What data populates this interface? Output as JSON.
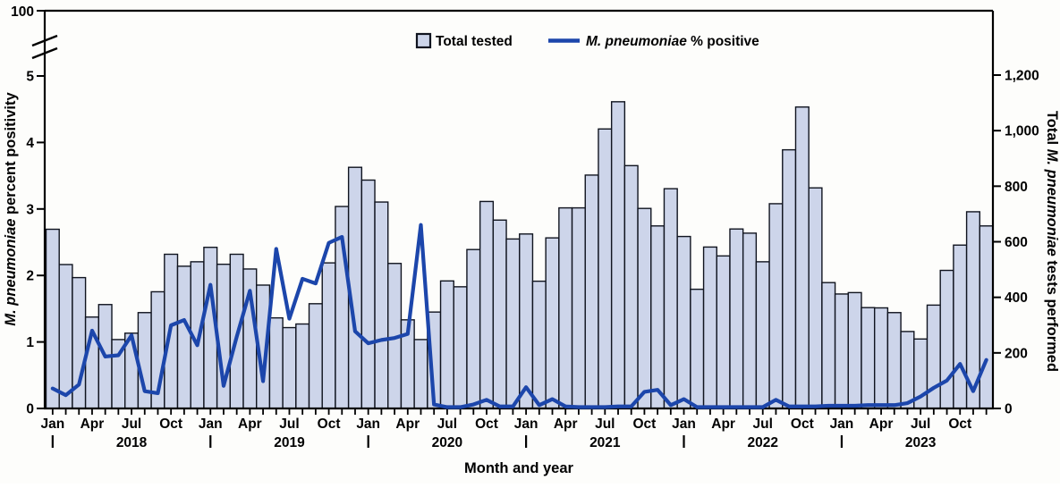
{
  "figure": {
    "legend": {
      "bar_label": "Total tested",
      "line_label_italic": "M. pneumoniae",
      "line_label_rest": " % positive"
    },
    "axes": {
      "left": {
        "title_italic": "M. pneumoniae",
        "title_rest": " percent positivity",
        "ticks": [
          "0",
          "1",
          "2",
          "3",
          "4",
          "5"
        ],
        "top_tick": "100"
      },
      "right": {
        "title_part1": "Total ",
        "title_italic": "M. pneumoniae",
        "title_part2": " tests performed",
        "ticks": [
          "0",
          "200",
          "400",
          "600",
          "800",
          "1,000",
          "1,200"
        ]
      },
      "x": {
        "title": "Month and year",
        "month_labels": [
          "Jan",
          "Apr",
          "Jul",
          "Oct"
        ],
        "years": [
          "2018",
          "2019",
          "2020",
          "2021",
          "2022",
          "2023"
        ]
      }
    },
    "colors": {
      "bar_fill": "#cdd5ea",
      "bar_border": "#10141f",
      "line": "#1c46ab",
      "axis": "#000000",
      "background": "#fdfdfb"
    }
  },
  "chart_data": {
    "type": "bar+line",
    "title": "",
    "xlabel": "Month and year",
    "left_ylabel": "M. pneumoniae percent positivity",
    "right_ylabel": "Total M. pneumoniae tests performed",
    "left_ylim": [
      0,
      5
    ],
    "left_axis_break_top_label": 100,
    "right_ylim": [
      0,
      1200
    ],
    "grid": false,
    "legend_position": "top-center",
    "categories": [
      "Jan 2018",
      "Feb 2018",
      "Mar 2018",
      "Apr 2018",
      "May 2018",
      "Jun 2018",
      "Jul 2018",
      "Aug 2018",
      "Sep 2018",
      "Oct 2018",
      "Nov 2018",
      "Dec 2018",
      "Jan 2019",
      "Feb 2019",
      "Mar 2019",
      "Apr 2019",
      "May 2019",
      "Jun 2019",
      "Jul 2019",
      "Aug 2019",
      "Sep 2019",
      "Oct 2019",
      "Nov 2019",
      "Dec 2019",
      "Jan 2020",
      "Feb 2020",
      "Mar 2020",
      "Apr 2020",
      "May 2020",
      "Jun 2020",
      "Jul 2020",
      "Aug 2020",
      "Sep 2020",
      "Oct 2020",
      "Nov 2020",
      "Dec 2020",
      "Jan 2021",
      "Feb 2021",
      "Mar 2021",
      "Apr 2021",
      "May 2021",
      "Jun 2021",
      "Jul 2021",
      "Aug 2021",
      "Sep 2021",
      "Oct 2021",
      "Nov 2021",
      "Dec 2021",
      "Jan 2022",
      "Feb 2022",
      "Mar 2022",
      "Apr 2022",
      "May 2022",
      "Jun 2022",
      "Jul 2022",
      "Aug 2022",
      "Sep 2022",
      "Oct 2022",
      "Nov 2022",
      "Dec 2022",
      "Jan 2023",
      "Feb 2023",
      "Mar 2023",
      "Apr 2023",
      "May 2023",
      "Jun 2023",
      "Jul 2023",
      "Aug 2023",
      "Sep 2023",
      "Oct 2023",
      "Nov 2023",
      "Dec 2023"
    ],
    "series": [
      {
        "name": "Total tested",
        "type": "bar",
        "axis": "right",
        "values": [
          645,
          518,
          471,
          329,
          374,
          248,
          271,
          345,
          420,
          555,
          512,
          528,
          580,
          519,
          555,
          502,
          444,
          326,
          291,
          304,
          377,
          524,
          727,
          868,
          822,
          743,
          522,
          319,
          248,
          347,
          459,
          438,
          572,
          745,
          678,
          610,
          628,
          458,
          614,
          722,
          722,
          840,
          1006,
          1104,
          874,
          720,
          657,
          791,
          619,
          429,
          581,
          549,
          646,
          631,
          528,
          737,
          931,
          1085,
          794,
          453,
          412,
          417,
          363,
          362,
          345,
          277,
          250,
          372,
          497,
          588,
          708,
          657
        ]
      },
      {
        "name": "M. pneumoniae % positive",
        "type": "line",
        "axis": "left",
        "values": [
          0.3,
          0.2,
          0.36,
          1.17,
          0.78,
          0.8,
          1.1,
          0.26,
          0.23,
          1.25,
          1.33,
          0.95,
          1.86,
          0.34,
          1.08,
          1.77,
          0.41,
          2.4,
          1.35,
          1.95,
          1.88,
          2.49,
          2.58,
          1.16,
          0.98,
          1.03,
          1.06,
          1.12,
          2.76,
          0.06,
          0.02,
          0.02,
          0.06,
          0.13,
          0.03,
          0.03,
          0.32,
          0.05,
          0.14,
          0.03,
          0.02,
          0.02,
          0.02,
          0.03,
          0.03,
          0.25,
          0.28,
          0.05,
          0.14,
          0.02,
          0.02,
          0.02,
          0.02,
          0.02,
          0.02,
          0.13,
          0.03,
          0.03,
          0.03,
          0.04,
          0.04,
          0.04,
          0.05,
          0.05,
          0.05,
          0.08,
          0.18,
          0.31,
          0.42,
          0.67,
          0.26,
          0.73
        ]
      }
    ]
  }
}
